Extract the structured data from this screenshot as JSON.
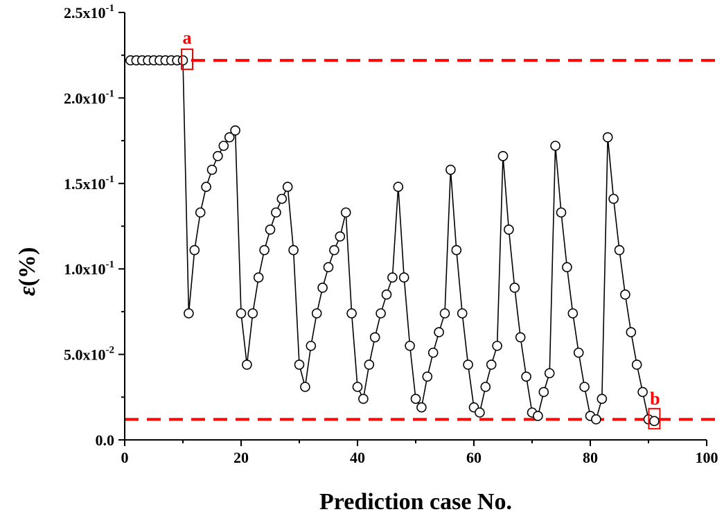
{
  "chart_data": {
    "type": "line",
    "xlabel": "Prediction case No.",
    "ylabel_symbol": "ε",
    "ylabel_unit": "(%)",
    "xlim": [
      0,
      100
    ],
    "ylim": [
      0,
      0.25
    ],
    "x_ticks": [
      {
        "value": 0,
        "label": "0"
      },
      {
        "value": 20,
        "label": "20"
      },
      {
        "value": 40,
        "label": "40"
      },
      {
        "value": 60,
        "label": "60"
      },
      {
        "value": 80,
        "label": "80"
      },
      {
        "value": 100,
        "label": "100"
      }
    ],
    "y_ticks": [
      {
        "value": 0,
        "label": "0.0"
      },
      {
        "value": 0.05,
        "mantissa": "5.0x10",
        "exp": "-2"
      },
      {
        "value": 0.1,
        "mantissa": "1.0x10",
        "exp": "-1"
      },
      {
        "value": 0.15,
        "mantissa": "1.5x10",
        "exp": "-1"
      },
      {
        "value": 0.2,
        "mantissa": "2.0x10",
        "exp": "-1"
      },
      {
        "value": 0.25,
        "mantissa": "2.5x10",
        "exp": "-1"
      }
    ],
    "grid": false,
    "series": [
      {
        "marker": "open-circle",
        "color": "#000000",
        "x": [
          1,
          2,
          3,
          4,
          5,
          6,
          7,
          8,
          9,
          10,
          11,
          12,
          13,
          14,
          15,
          16,
          17,
          18,
          19,
          20,
          21,
          22,
          23,
          24,
          25,
          26,
          27,
          28,
          29,
          30,
          31,
          32,
          33,
          34,
          35,
          36,
          37,
          38,
          39,
          40,
          41,
          42,
          43,
          44,
          45,
          46,
          47,
          48,
          49,
          50,
          51,
          52,
          53,
          54,
          55,
          56,
          57,
          58,
          59,
          60,
          61,
          62,
          63,
          64,
          65,
          66,
          67,
          68,
          69,
          70,
          71,
          72,
          73,
          74,
          75,
          76,
          77,
          78,
          79,
          80,
          81,
          82,
          83,
          84,
          85,
          86,
          87,
          88,
          89,
          90,
          91
        ],
        "y": [
          0.222,
          0.222,
          0.222,
          0.222,
          0.222,
          0.222,
          0.222,
          0.222,
          0.222,
          0.222,
          0.074,
          0.111,
          0.133,
          0.148,
          0.158,
          0.166,
          0.172,
          0.177,
          0.181,
          0.074,
          0.044,
          0.074,
          0.095,
          0.111,
          0.123,
          0.133,
          0.141,
          0.148,
          0.111,
          0.044,
          0.031,
          0.055,
          0.074,
          0.089,
          0.101,
          0.111,
          0.119,
          0.133,
          0.074,
          0.031,
          0.024,
          0.044,
          0.06,
          0.074,
          0.085,
          0.095,
          0.148,
          0.095,
          0.055,
          0.024,
          0.019,
          0.037,
          0.051,
          0.063,
          0.074,
          0.158,
          0.111,
          0.074,
          0.044,
          0.019,
          0.016,
          0.031,
          0.044,
          0.055,
          0.166,
          0.123,
          0.089,
          0.06,
          0.037,
          0.016,
          0.014,
          0.028,
          0.039,
          0.172,
          0.133,
          0.101,
          0.074,
          0.051,
          0.031,
          0.014,
          0.012,
          0.024,
          0.177,
          0.141,
          0.111,
          0.085,
          0.063,
          0.044,
          0.028,
          0.012,
          0.011
        ]
      }
    ],
    "reference_lines": [
      {
        "y": 0.222,
        "style": "dashed",
        "color": "#ff0000"
      },
      {
        "y": 0.012,
        "style": "dashed",
        "color": "#ff0000"
      }
    ],
    "annotations": [
      {
        "label": "a",
        "x": 10,
        "y": 0.222,
        "color": "#ff0000"
      },
      {
        "label": "b",
        "x": 91,
        "y": 0.011,
        "color": "#ff0000"
      }
    ]
  }
}
